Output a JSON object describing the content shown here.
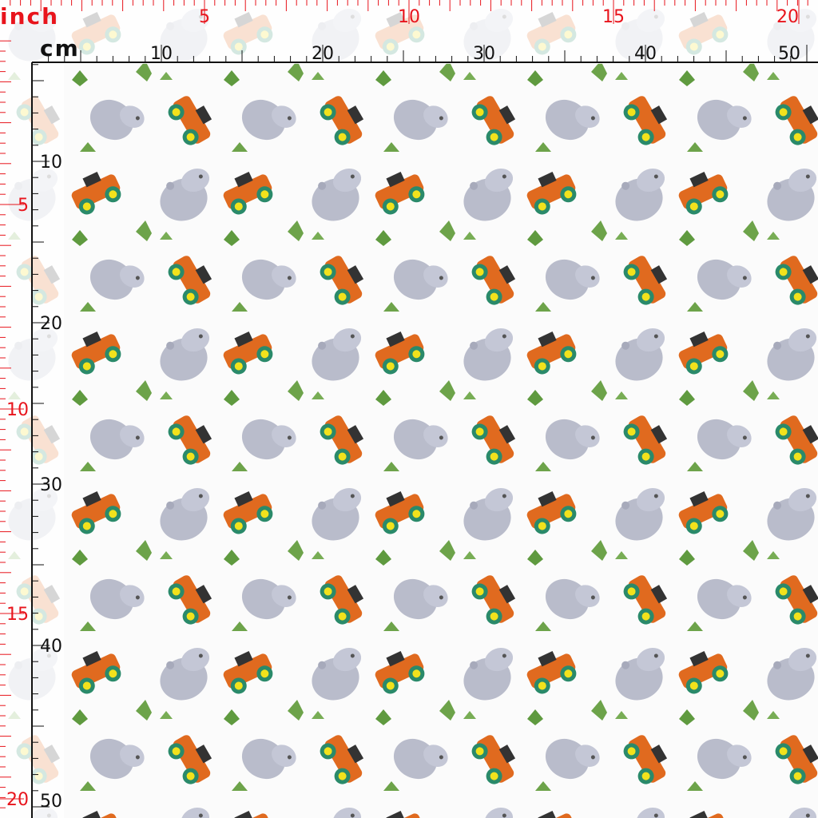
{
  "rulers": {
    "inch": {
      "unit": "inch",
      "labels": [
        5,
        10,
        15,
        20
      ]
    },
    "cm": {
      "unit": "cm",
      "labels": [
        10,
        20,
        30,
        40,
        50
      ]
    }
  }
}
